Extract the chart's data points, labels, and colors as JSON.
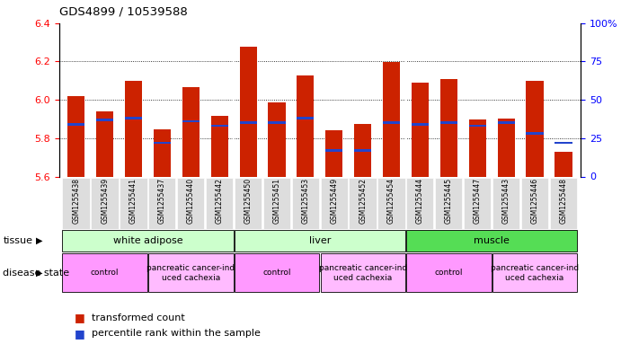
{
  "title": "GDS4899 / 10539588",
  "samples": [
    "GSM1255438",
    "GSM1255439",
    "GSM1255441",
    "GSM1255437",
    "GSM1255440",
    "GSM1255442",
    "GSM1255450",
    "GSM1255451",
    "GSM1255453",
    "GSM1255449",
    "GSM1255452",
    "GSM1255454",
    "GSM1255444",
    "GSM1255445",
    "GSM1255447",
    "GSM1255443",
    "GSM1255446",
    "GSM1255448"
  ],
  "red_values": [
    6.02,
    5.94,
    6.1,
    5.845,
    6.065,
    5.915,
    6.275,
    5.985,
    6.125,
    5.84,
    5.875,
    6.195,
    6.09,
    6.11,
    5.895,
    5.9,
    6.1,
    5.73
  ],
  "blue_percentiles": [
    34,
    37,
    38,
    22,
    36,
    33,
    35,
    35,
    38,
    17,
    17,
    35,
    34,
    35,
    33,
    35,
    28,
    22
  ],
  "ymin": 5.6,
  "ymax": 6.4,
  "yright_min": 0,
  "yright_max": 100,
  "yticks_left": [
    5.6,
    5.8,
    6.0,
    6.2,
    6.4
  ],
  "yticks_right": [
    0,
    25,
    50,
    75,
    100
  ],
  "bar_color": "#cc2200",
  "blue_color": "#2244cc",
  "tissue_groups": [
    {
      "label": "white adipose",
      "start": 0,
      "end": 5,
      "light_color": "#ccffcc",
      "dark_color": "#ccffcc"
    },
    {
      "label": "liver",
      "start": 6,
      "end": 11,
      "light_color": "#ccffcc",
      "dark_color": "#ccffcc"
    },
    {
      "label": "muscle",
      "start": 12,
      "end": 17,
      "light_color": "#55dd55",
      "dark_color": "#55dd55"
    }
  ],
  "disease_groups": [
    {
      "label": "control",
      "start": 0,
      "end": 2,
      "color": "#ff99ff"
    },
    {
      "label": "pancreatic cancer-ind\nuced cachexia",
      "start": 3,
      "end": 5,
      "color": "#ffbbff"
    },
    {
      "label": "control",
      "start": 6,
      "end": 8,
      "color": "#ff99ff"
    },
    {
      "label": "pancreatic cancer-ind\nuced cachexia",
      "start": 9,
      "end": 11,
      "color": "#ffbbff"
    },
    {
      "label": "control",
      "start": 12,
      "end": 14,
      "color": "#ff99ff"
    },
    {
      "label": "pancreatic cancer-ind\nuced cachexia",
      "start": 15,
      "end": 17,
      "color": "#ffbbff"
    }
  ],
  "legend_items": [
    {
      "label": "transformed count",
      "color": "#cc2200"
    },
    {
      "label": "percentile rank within the sample",
      "color": "#2244cc"
    }
  ],
  "xticklabel_bg": "#dddddd"
}
